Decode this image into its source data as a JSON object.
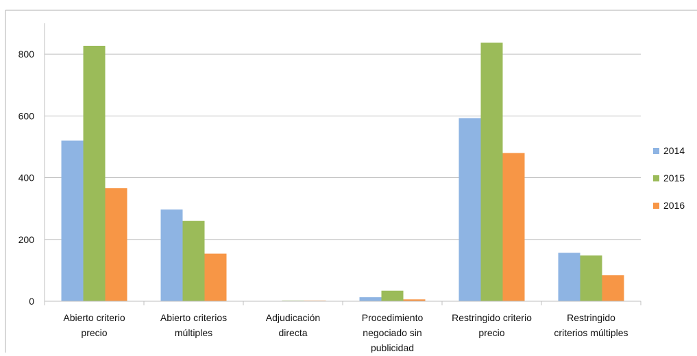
{
  "chart_data": {
    "type": "bar",
    "categories": [
      [
        "Abierto criterio",
        "precio"
      ],
      [
        "Abierto criterios",
        "múltiples"
      ],
      [
        "Adjudicación",
        "directa"
      ],
      [
        "Procedimiento",
        "negociado sin",
        "publicidad"
      ],
      [
        "Restringido criterio",
        "precio"
      ],
      [
        "Restringido",
        "criterios múltiples"
      ]
    ],
    "series": [
      {
        "name": "2014",
        "color": "#8EB4E3",
        "values": [
          520,
          297,
          1,
          13,
          593,
          157
        ]
      },
      {
        "name": "2015",
        "color": "#9BBB59",
        "values": [
          827,
          260,
          2,
          34,
          837,
          148
        ]
      },
      {
        "name": "2016",
        "color": "#F79646",
        "values": [
          366,
          154,
          2,
          6,
          480,
          84
        ]
      }
    ],
    "ylim": [
      0,
      900
    ],
    "yticks": [
      0,
      200,
      400,
      600,
      800
    ],
    "grid": true,
    "legend_position": "right"
  }
}
